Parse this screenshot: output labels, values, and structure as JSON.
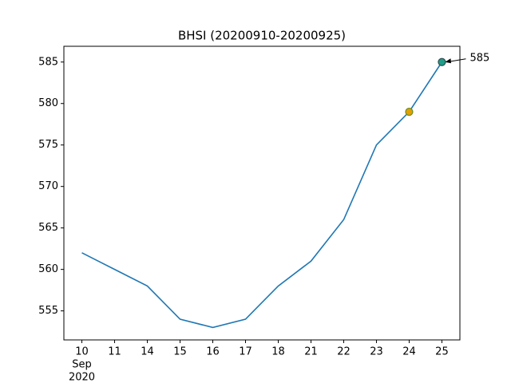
{
  "chart_data": {
    "type": "line",
    "title": "BHSI (20200910-20200925)",
    "categories": [
      "10",
      "11",
      "14",
      "15",
      "16",
      "17",
      "18",
      "21",
      "22",
      "23",
      "24",
      "25"
    ],
    "x_date_parts": [
      "Sep",
      "2020"
    ],
    "series": [
      {
        "name": "BHSI",
        "color": "#1f77b4",
        "values": [
          562,
          560,
          558,
          554,
          553,
          554,
          558,
          561,
          566,
          575,
          579,
          585
        ]
      }
    ],
    "ylim": [
      551.5,
      586.9
    ],
    "yticks": [
      555,
      560,
      565,
      570,
      575,
      580,
      585
    ],
    "markers": [
      {
        "x": "24",
        "fill": "#e69f00",
        "edge": "#6b8e23"
      },
      {
        "x": "25",
        "fill": "#1f9e89",
        "edge": "#2f4f4f"
      }
    ],
    "annotation": {
      "text": "585",
      "x": "25"
    }
  }
}
